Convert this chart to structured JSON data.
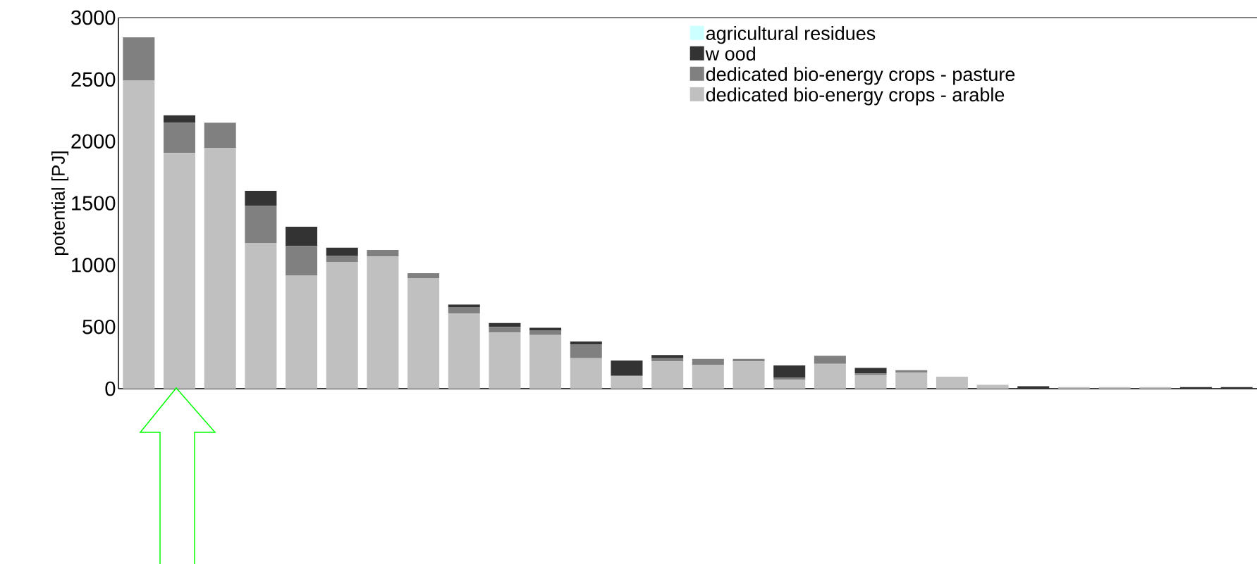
{
  "chart_data": {
    "type": "bar",
    "stacked": true,
    "ylabel": "potential [PJ]",
    "categories": [
      null,
      null,
      null,
      null,
      null,
      null,
      null,
      null,
      null,
      null,
      null,
      null,
      null,
      null,
      null,
      null,
      null,
      null,
      null,
      null,
      null,
      null,
      null,
      null,
      null,
      null,
      null,
      null
    ],
    "series": [
      {
        "name": "dedicated bio-energy crops - arable",
        "color": "#c0c0c0",
        "values": [
          2494,
          1905,
          1944,
          1179,
          914,
          1024,
          1069,
          894,
          609,
          454,
          434,
          246,
          104,
          220,
          194,
          220,
          71,
          201,
          110,
          130,
          97,
          32,
          null,
          13,
          13,
          13,
          0,
          0
        ]
      },
      {
        "name": "dedicated bio-energy crops - pasture",
        "color": "#808080",
        "values": [
          346,
          246,
          207,
          298,
          239,
          52,
          52,
          39,
          52,
          45,
          39,
          110,
          0,
          26,
          46,
          20,
          20,
          65,
          13,
          19,
          0,
          0,
          0,
          0,
          0,
          0,
          0,
          0
        ]
      },
      {
        "name": "w ood",
        "color": "#333333",
        "values": [
          0,
          59,
          0,
          123,
          156,
          64,
          0,
          0,
          19,
          32,
          19,
          26,
          123,
          26,
          0,
          0,
          97,
          0,
          45,
          0,
          0,
          0,
          20,
          0,
          0,
          0,
          13,
          13
        ]
      },
      {
        "name": "agricultural residues",
        "color": "#ccffff",
        "values": [
          0,
          0,
          0,
          0,
          0,
          0,
          0,
          0,
          0,
          0,
          0,
          0,
          0,
          0,
          0,
          0,
          0,
          0,
          0,
          0,
          0,
          0,
          0,
          0,
          0,
          0,
          0,
          0
        ]
      }
    ],
    "ylim": [
      0,
      3000
    ],
    "yticks": [
      0,
      500,
      1000,
      1500,
      2000,
      2500,
      3000
    ],
    "legend": "top right"
  }
}
